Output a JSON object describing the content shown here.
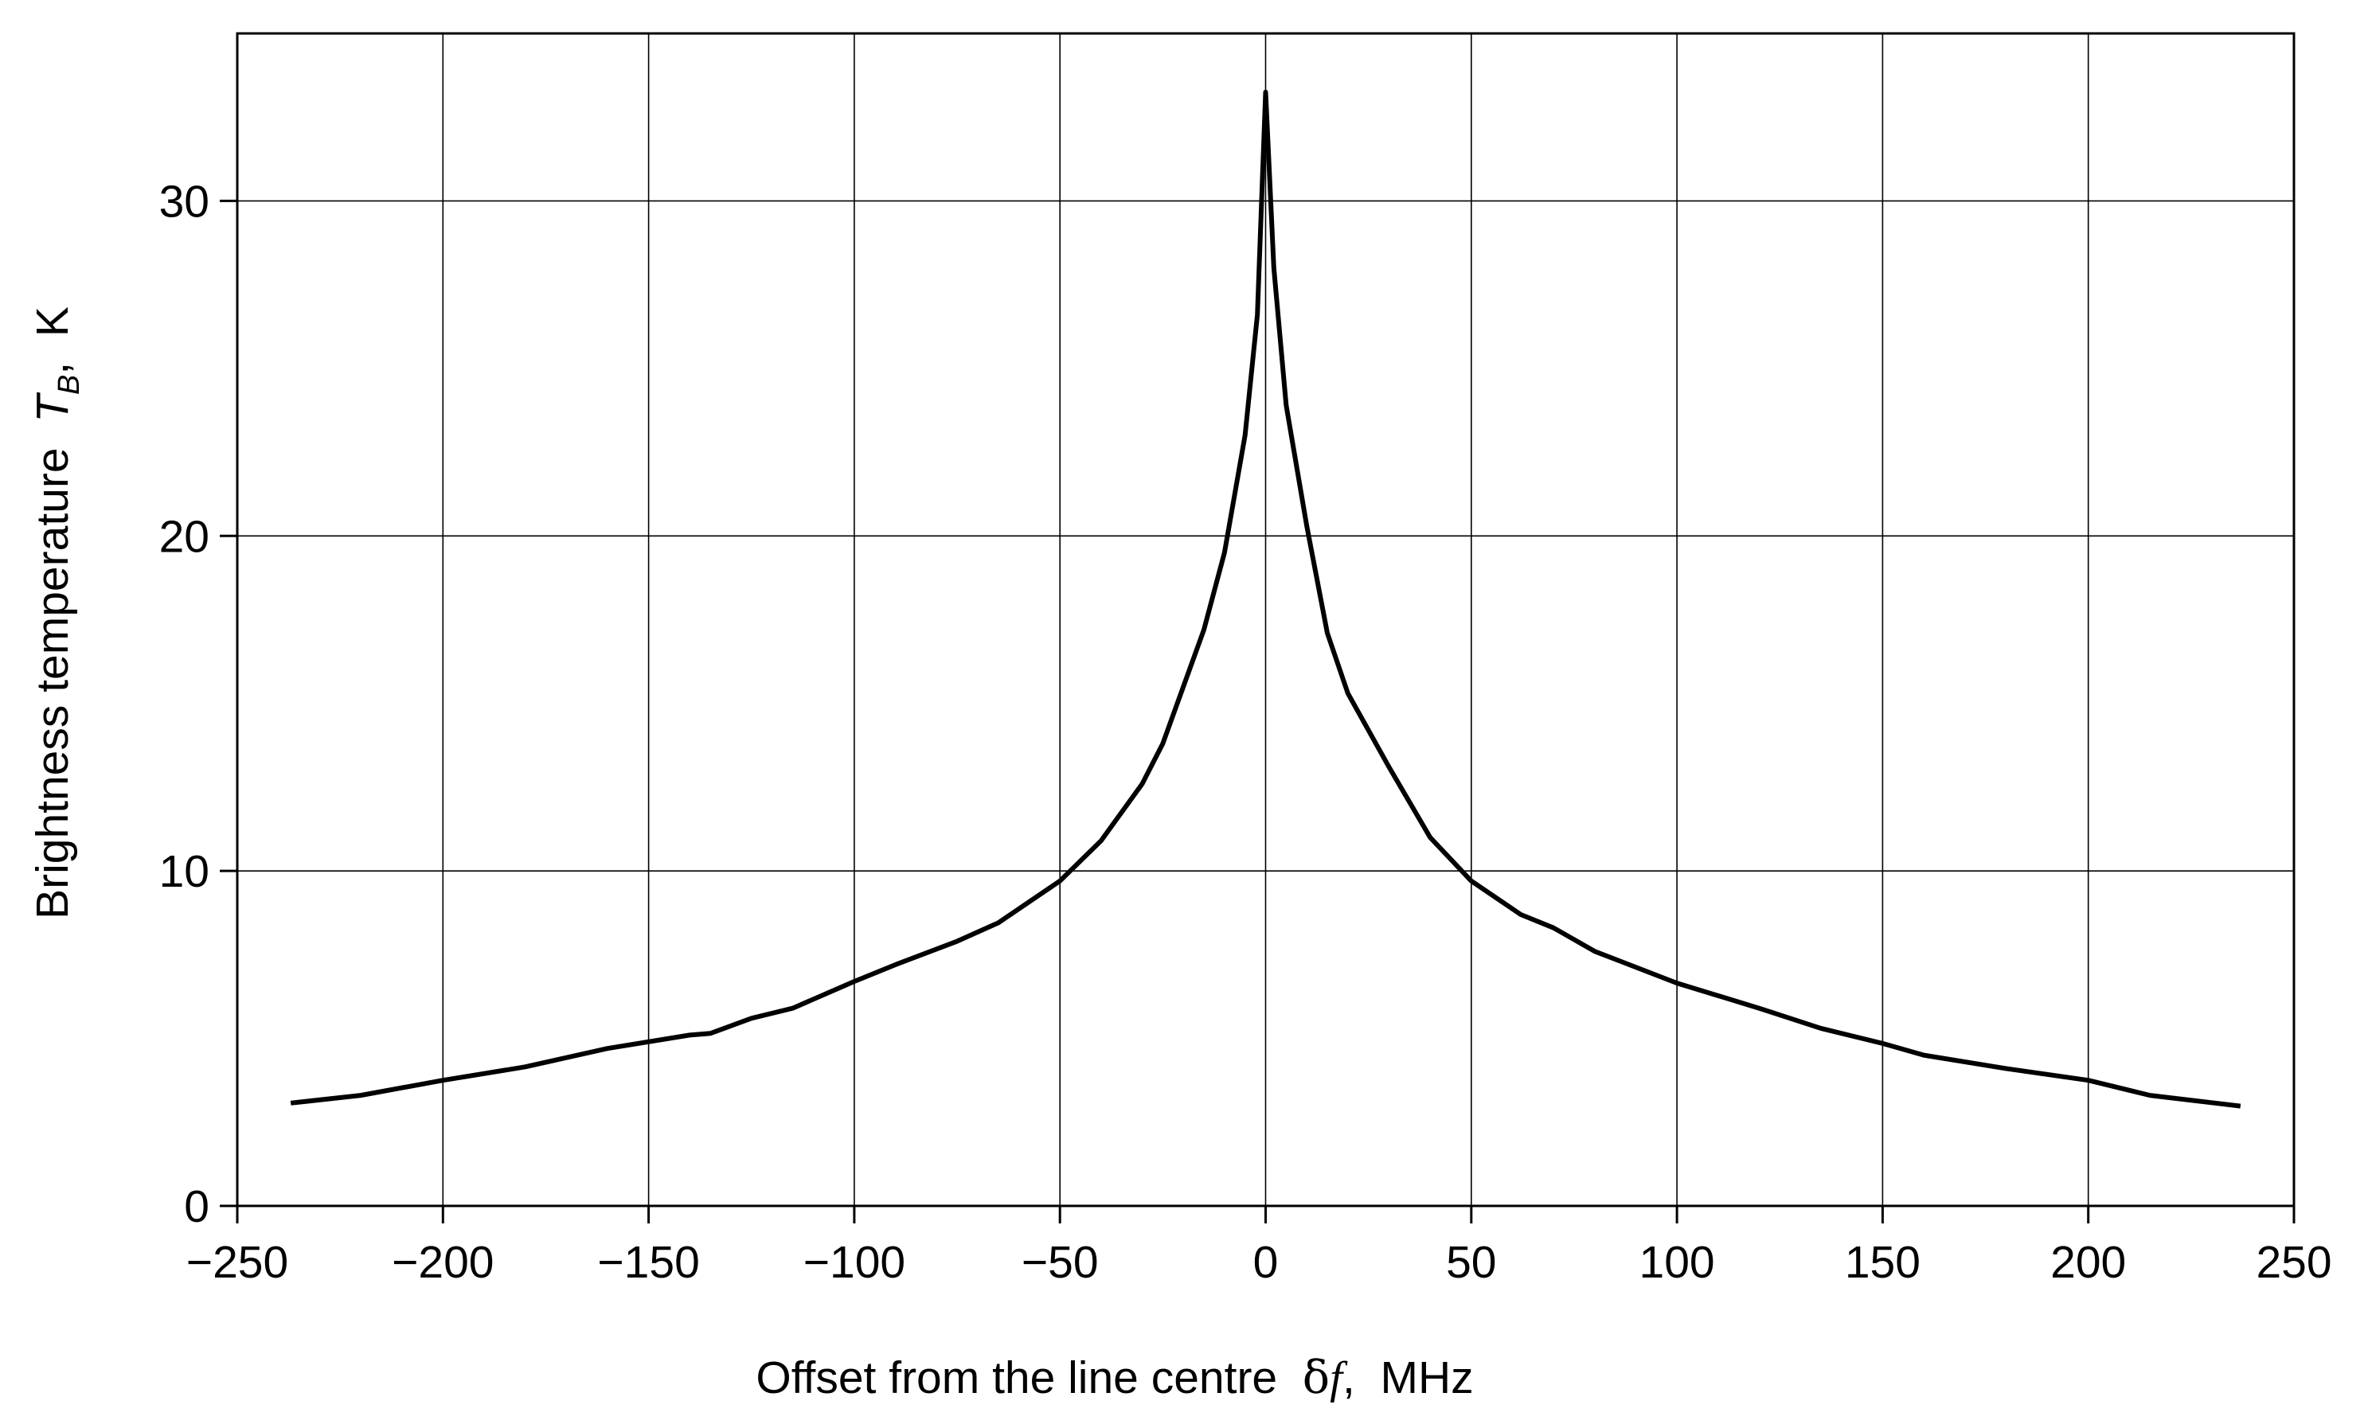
{
  "chart_data": {
    "type": "line",
    "xlabel_parts": [
      "Offset from the line centre  ",
      "δ",
      "f",
      ",  MHz"
    ],
    "ylabel_parts": [
      "Brightness temperature  ",
      "T",
      "B",
      ",  K"
    ],
    "x": [
      -237,
      -220,
      -200,
      -180,
      -160,
      -140,
      -135,
      -125,
      -115,
      -100,
      -90,
      -75,
      -65,
      -50,
      -40,
      -30,
      -25,
      -20,
      -15,
      -10,
      -5,
      -2,
      0,
      2,
      5,
      10,
      15,
      20,
      30,
      40,
      50,
      62,
      70,
      80,
      100,
      120,
      135,
      150,
      160,
      180,
      200,
      215,
      237
    ],
    "series": [
      {
        "color": "#000000",
        "values": [
          3.07,
          3.3,
          3.75,
          4.15,
          4.7,
          5.1,
          5.15,
          5.6,
          5.9,
          6.7,
          7.2,
          7.9,
          8.45,
          9.7,
          10.9,
          12.6,
          13.8,
          15.5,
          17.2,
          19.5,
          23,
          26.6,
          33.25,
          28,
          23.9,
          20.3,
          17.1,
          15.3,
          13.1,
          11,
          9.7,
          8.7,
          8.3,
          7.6,
          6.65,
          5.9,
          5.3,
          4.85,
          4.5,
          4.1,
          3.75,
          3.3,
          2.98
        ]
      }
    ],
    "xlim": [
      -250,
      250
    ],
    "xticks": [
      {
        "value": -250,
        "label": "−250"
      },
      {
        "value": -200,
        "label": "−200"
      },
      {
        "value": -150,
        "label": "−150"
      },
      {
        "value": -100,
        "label": "−100"
      },
      {
        "value": -50,
        "label": "−50"
      },
      0,
      50,
      100,
      150,
      200,
      250
    ],
    "ylim": [
      0,
      35
    ],
    "yticks": [
      0,
      10,
      20,
      30
    ],
    "grid": true
  }
}
